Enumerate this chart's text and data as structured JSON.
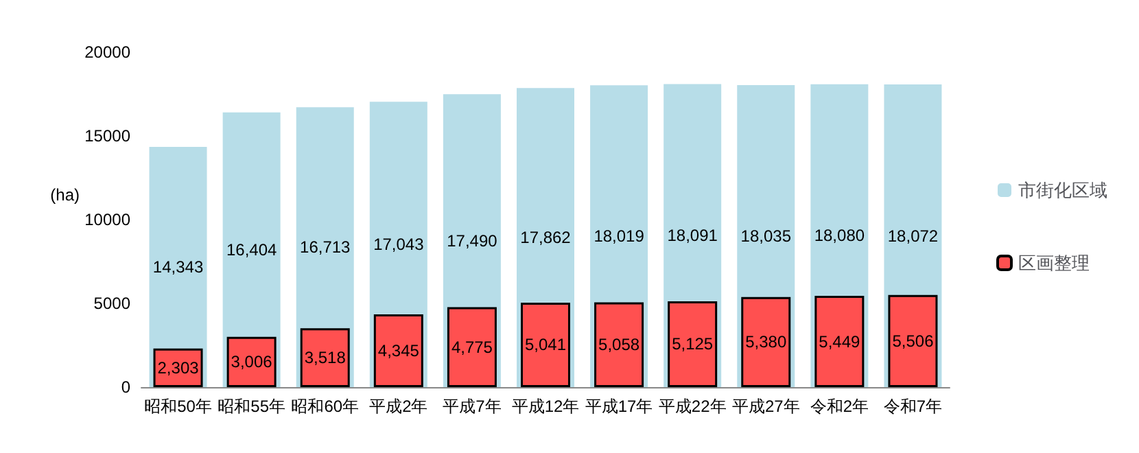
{
  "chart_data": {
    "type": "bar",
    "ylabel": "(ha)",
    "categories": [
      "昭和50年",
      "昭和55年",
      "昭和60年",
      "平成2年",
      "平成7年",
      "平成12年",
      "平成17年",
      "平成22年",
      "平成27年",
      "令和2年",
      "令和7年"
    ],
    "series": [
      {
        "name": "市街化区域",
        "color": "#b7dde8",
        "values": [
          14343,
          16404,
          16713,
          17043,
          17490,
          17862,
          18019,
          18091,
          18035,
          18080,
          18072
        ],
        "value_labels": [
          "14,343",
          "16,404",
          "16,713",
          "17,043",
          "17,490",
          "17,862",
          "18,019",
          "18,091",
          "18,035",
          "18,080",
          "18,072"
        ]
      },
      {
        "name": "区画整理",
        "color": "#ff5050",
        "values": [
          2303,
          3006,
          3518,
          4345,
          4775,
          5041,
          5058,
          5125,
          5380,
          5449,
          5506
        ],
        "value_labels": [
          "2,303",
          "3,006",
          "3,518",
          "4,345",
          "4,775",
          "5,041",
          "5,058",
          "5,125",
          "5,380",
          "5,449",
          "5,506"
        ]
      }
    ],
    "ylim": [
      0,
      20000
    ],
    "yticks": [
      0,
      5000,
      10000,
      15000,
      20000
    ],
    "grid": false,
    "legend": "right"
  }
}
